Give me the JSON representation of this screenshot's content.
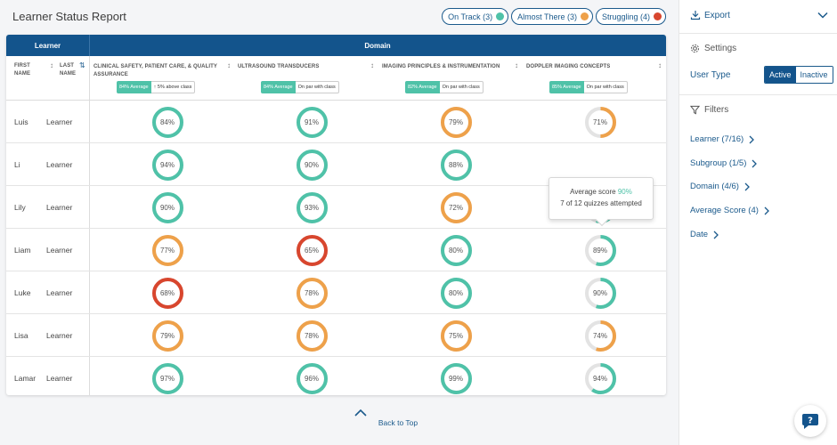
{
  "header": {
    "title": "Learner Status Report",
    "pills": [
      {
        "label": "On Track (3)",
        "color": "#4fc2a8"
      },
      {
        "label": "Almost There (3)",
        "color": "#eea14a"
      },
      {
        "label": "Struggling (4)",
        "color": "#d8462e"
      }
    ]
  },
  "table": {
    "group_learner": "Learner",
    "group_domain": "Domain",
    "col_first": "FIRST NAME",
    "col_last": "LAST NAME",
    "domains": [
      {
        "name": "CLINICAL SAFETY, PATIENT CARE, & QUALITY ASSURANCE",
        "avg": "84% Average",
        "compare": "5% above class",
        "arrow": "↑"
      },
      {
        "name": "ULTRASOUND TRANSDUCERS",
        "avg": "84% Average",
        "compare": "On par with class",
        "arrow": ""
      },
      {
        "name": "IMAGING PRINCIPLES & INSTRUMENTATION",
        "avg": "82% Average",
        "compare": "On par with class",
        "arrow": ""
      },
      {
        "name": "DOPPLER IMAGING CONCEPTS",
        "avg": "85% Average",
        "compare": "On par with class",
        "arrow": ""
      }
    ],
    "rows": [
      {
        "first": "Luis",
        "last": "Learner",
        "scores": [
          {
            "label": "84%",
            "fill": 1,
            "color": "#4fc2a8"
          },
          {
            "label": "91%",
            "fill": 1,
            "color": "#4fc2a8"
          },
          {
            "label": "79%",
            "fill": 1,
            "color": "#eea14a"
          },
          {
            "label": "71%",
            "fill": 0.5,
            "color": "#eea14a"
          }
        ]
      },
      {
        "first": "Li",
        "last": "Learner",
        "scores": [
          {
            "label": "94%",
            "fill": 1,
            "color": "#4fc2a8"
          },
          {
            "label": "90%",
            "fill": 1,
            "color": "#4fc2a8"
          },
          {
            "label": "88%",
            "fill": 1,
            "color": "#4fc2a8"
          },
          {
            "label": "",
            "fill": 0,
            "color": "#4fc2a8"
          }
        ]
      },
      {
        "first": "Lily",
        "last": "Learner",
        "scores": [
          {
            "label": "90%",
            "fill": 1,
            "color": "#4fc2a8"
          },
          {
            "label": "93%",
            "fill": 1,
            "color": "#4fc2a8"
          },
          {
            "label": "72%",
            "fill": 1,
            "color": "#eea14a"
          },
          {
            "label": "90%",
            "fill": 0.55,
            "color": "#4fc2a8"
          }
        ]
      },
      {
        "first": "Liam",
        "last": "Learner",
        "scores": [
          {
            "label": "77%",
            "fill": 1,
            "color": "#eea14a"
          },
          {
            "label": "65%",
            "fill": 1,
            "color": "#d8462e"
          },
          {
            "label": "80%",
            "fill": 1,
            "color": "#4fc2a8"
          },
          {
            "label": "89%",
            "fill": 0.55,
            "color": "#4fc2a8"
          }
        ]
      },
      {
        "first": "Luke",
        "last": "Learner",
        "scores": [
          {
            "label": "68%",
            "fill": 1,
            "color": "#d8462e"
          },
          {
            "label": "78%",
            "fill": 1,
            "color": "#eea14a"
          },
          {
            "label": "80%",
            "fill": 1,
            "color": "#4fc2a8"
          },
          {
            "label": "90%",
            "fill": 0.55,
            "color": "#4fc2a8"
          }
        ]
      },
      {
        "first": "Lisa",
        "last": "Learner",
        "scores": [
          {
            "label": "79%",
            "fill": 1,
            "color": "#eea14a"
          },
          {
            "label": "78%",
            "fill": 1,
            "color": "#eea14a"
          },
          {
            "label": "75%",
            "fill": 1,
            "color": "#eea14a"
          },
          {
            "label": "74%",
            "fill": 0.55,
            "color": "#eea14a"
          }
        ]
      },
      {
        "first": "Lamar",
        "last": "Learner",
        "scores": [
          {
            "label": "97%",
            "fill": 1,
            "color": "#4fc2a8"
          },
          {
            "label": "96%",
            "fill": 1,
            "color": "#4fc2a8"
          },
          {
            "label": "99%",
            "fill": 1,
            "color": "#4fc2a8"
          },
          {
            "label": "94%",
            "fill": 0.6,
            "color": "#4fc2a8"
          }
        ]
      }
    ]
  },
  "tooltip": {
    "prefix": "Average score ",
    "value": "90%",
    "quizzes": "7 of 12 quizzes attempted"
  },
  "back_to_top": "Back to Top",
  "sidebar": {
    "export": "Export",
    "settings": "Settings",
    "user_type": "User Type",
    "active": "Active",
    "inactive": "Inactive",
    "filters_title": "Filters",
    "filters": [
      {
        "label": "Learner (7/16)"
      },
      {
        "label": "Subgroup (1/5)"
      },
      {
        "label": "Domain (4/6)"
      },
      {
        "label": "Average Score (4)"
      },
      {
        "label": "Date"
      }
    ]
  },
  "colors": {
    "accent": "#13548c",
    "on_track": "#4fc2a8",
    "almost": "#eea14a",
    "struggling": "#d8462e"
  },
  "icons": {
    "export": "download-icon",
    "settings": "gear-icon",
    "filter": "funnel-icon",
    "help": "help-chat-icon"
  }
}
